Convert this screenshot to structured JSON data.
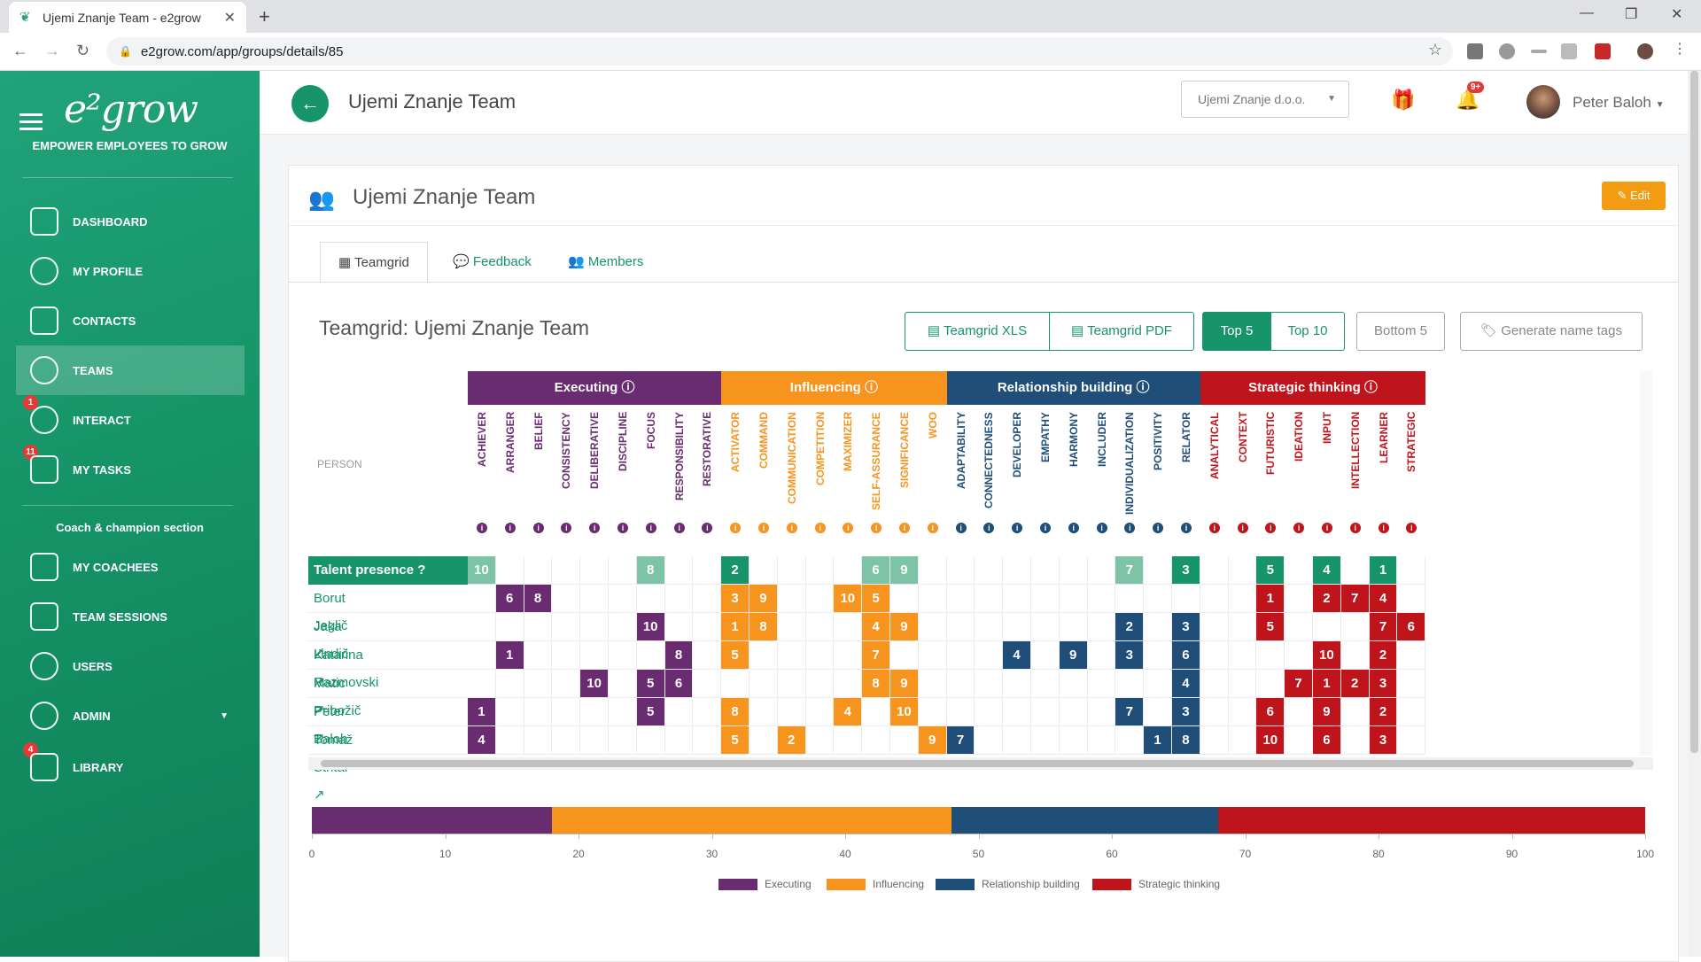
{
  "browser": {
    "tab_title": "Ujemi Znanje Team - e2grow",
    "url": "e2grow.com/app/groups/details/85"
  },
  "sidebar": {
    "logo": "e²grow",
    "tagline": "EMPOWER EMPLOYEES TO GROW",
    "items": [
      {
        "label": "DASHBOARD"
      },
      {
        "label": "MY PROFILE"
      },
      {
        "label": "CONTACTS"
      },
      {
        "label": "TEAMS"
      },
      {
        "label": "INTERACT",
        "badge": "1"
      },
      {
        "label": "MY TASKS",
        "badge": "11"
      }
    ],
    "coach_section": "Coach & champion section",
    "coach_items": [
      {
        "label": "MY COACHEES"
      },
      {
        "label": "TEAM SESSIONS"
      },
      {
        "label": "USERS"
      },
      {
        "label": "ADMIN"
      },
      {
        "label": "LIBRARY",
        "badge": "4"
      }
    ]
  },
  "topbar": {
    "title": "Ujemi Znanje Team",
    "company": "Ujemi Znanje d.o.o.",
    "notifications": "9+",
    "user": "Peter Baloh"
  },
  "card": {
    "title": "Ujemi Znanje Team",
    "edit": "Edit",
    "tabs": [
      "Teamgrid",
      "Feedback",
      "Members"
    ],
    "grid_title": "Teamgrid: Ujemi Znanje Team",
    "buttons": {
      "xls": "Teamgrid XLS",
      "pdf": "Teamgrid PDF",
      "top5": "Top 5",
      "top10": "Top 10",
      "bottom5": "Bottom 5",
      "nametags": "Generate name tags"
    },
    "person_col": "PERSON",
    "talent_presence": "Talent presence"
  },
  "domains": [
    {
      "name": "Executing",
      "color": "#6a2c70",
      "light": "#8e5a94",
      "talents": [
        "ACHIEVER",
        "ARRANGER",
        "BELIEF",
        "CONSISTENCY",
        "DELIBERATIVE",
        "DISCIPLINE",
        "FOCUS",
        "RESPONSIBILITY",
        "RESTORATIVE"
      ]
    },
    {
      "name": "Influencing",
      "color": "#f7941d",
      "light": "#f7941d",
      "talents": [
        "ACTIVATOR",
        "COMMAND",
        "COMMUNICATION",
        "COMPETITION",
        "MAXIMIZER",
        "SELF-ASSURANCE",
        "SIGNIFICANCE",
        "WOO"
      ]
    },
    {
      "name": "Relationship building",
      "color": "#1f4e79",
      "light": "#1f4e79",
      "talents": [
        "ADAPTABILITY",
        "CONNECTEDNESS",
        "DEVELOPER",
        "EMPATHY",
        "HARMONY",
        "INCLUDER",
        "INDIVIDUALIZATION",
        "POSITIVITY",
        "RELATOR"
      ]
    },
    {
      "name": "Strategic thinking",
      "color": "#c0141c",
      "light": "#c0141c",
      "talents": [
        "ANALYTICAL",
        "CONTEXT",
        "FUTURISTIC",
        "IDEATION",
        "INPUT",
        "INTELLECTION",
        "LEARNER",
        "STRATEGIC"
      ]
    }
  ],
  "presence": {
    "0": "10",
    "6": "8",
    "9": "2",
    "14": "6",
    "15": "9",
    "23": "7",
    "25": "3",
    "28": "5",
    "30": "4",
    "32": "1"
  },
  "people": [
    {
      "name": "Borut Jeglič",
      "cells": {
        "1": "6",
        "2": "8",
        "9": "3",
        "10": "9",
        "13": "10",
        "14": "5",
        "28": "1",
        "30": "2",
        "31": "7",
        "32": "4"
      }
    },
    {
      "name": "Jaka Lindič",
      "cells": {
        "6": "10",
        "9": "1",
        "10": "8",
        "14": "4",
        "15": "9",
        "23": "2",
        "25": "3",
        "28": "5",
        "32": "7",
        "33": "6"
      }
    },
    {
      "name": "Katarina Razmovski",
      "cells": {
        "1": "1",
        "7": "8",
        "9": "5",
        "14": "7",
        "19": "4",
        "21": "9",
        "23": "3",
        "25": "6",
        "30": "10",
        "32": "2"
      }
    },
    {
      "name": "Matic Pribožič",
      "cells": {
        "4": "10",
        "6": "5",
        "7": "6",
        "14": "8",
        "15": "9",
        "25": "4",
        "29": "7",
        "30": "1",
        "31": "2",
        "32": "3"
      }
    },
    {
      "name": "Peter Baloh",
      "cells": {
        "0": "1",
        "6": "5",
        "9": "8",
        "13": "4",
        "15": "10",
        "23": "7",
        "25": "3",
        "28": "6",
        "30": "9",
        "32": "2"
      }
    },
    {
      "name": "Tomaž Stritar",
      "cells": {
        "0": "4",
        "9": "5",
        "11": "2",
        "16": "9",
        "17": "7",
        "24": "1",
        "25": "8",
        "28": "10",
        "30": "6",
        "32": "3"
      }
    }
  ],
  "chart_data": {
    "type": "bar",
    "orientation": "horizontal-stacked",
    "categories": [
      "Executing",
      "Influencing",
      "Relationship building",
      "Strategic thinking"
    ],
    "values": [
      18,
      30,
      20,
      32
    ],
    "colors": [
      "#6a2c70",
      "#f7941d",
      "#1f4e79",
      "#c0141c"
    ],
    "xlim": [
      0,
      100
    ],
    "ticks": [
      "0",
      "10",
      "20",
      "30",
      "40",
      "50",
      "60",
      "70",
      "80",
      "90",
      "100"
    ],
    "legend": "bottom"
  }
}
